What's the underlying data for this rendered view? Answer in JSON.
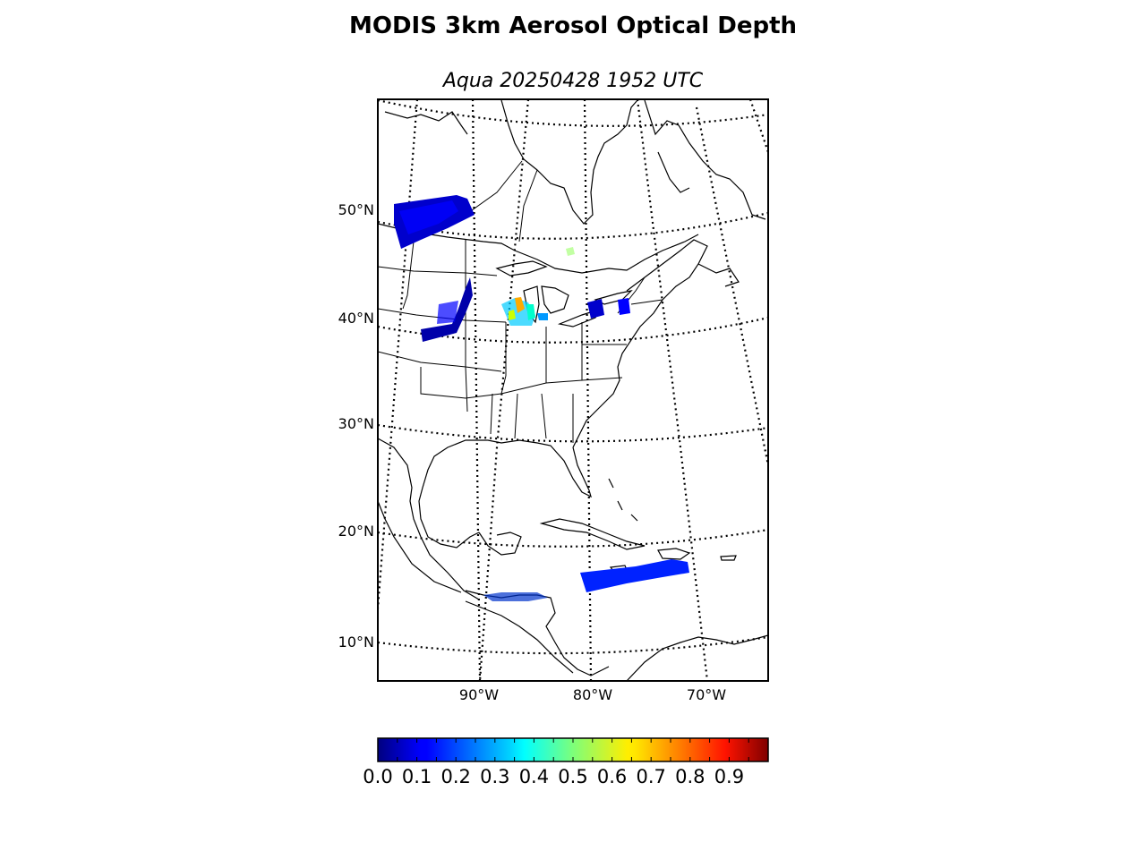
{
  "title": "MODIS 3km Aerosol Optical Depth",
  "subtitle": "Aqua 20250428 1952 UTC",
  "lat_labels": [
    "50°N",
    "40°N",
    "30°N",
    "20°N",
    "10°N"
  ],
  "lon_labels": [
    "90°W",
    "80°W",
    "70°W"
  ],
  "colorbar": {
    "colormap": "jet",
    "range": [
      0.0,
      1.0
    ],
    "tick_labels": [
      "0.0",
      "0.1",
      "0.2",
      "0.3",
      "0.4",
      "0.5",
      "0.6",
      "0.7",
      "0.8",
      "0.9"
    ]
  },
  "colors": {
    "coastline": "#000000",
    "graticule": "#000000",
    "background": "#ffffff"
  }
}
